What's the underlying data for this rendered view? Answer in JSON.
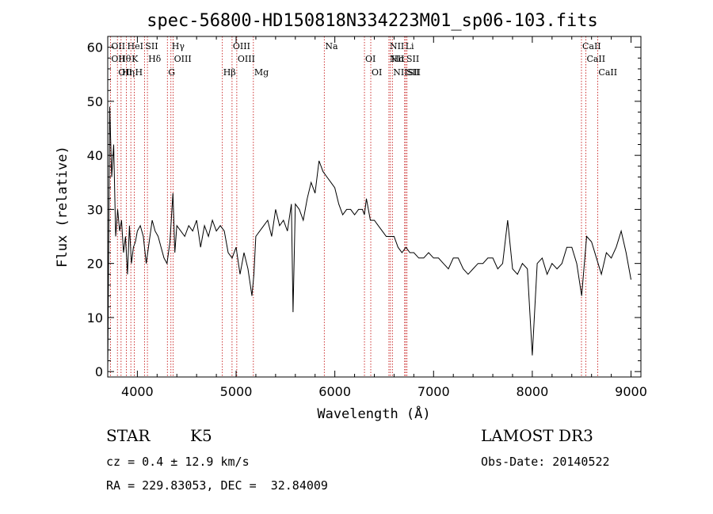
{
  "chart_data": {
    "type": "line",
    "title": "spec-56800-HD150818N334223M01_sp06-103.fits",
    "xlabel": "Wavelength (Å)",
    "ylabel": "Flux (relative)",
    "xlim": [
      3700,
      9100
    ],
    "ylim": [
      -1,
      62
    ],
    "xticks": [
      4000,
      5000,
      6000,
      7000,
      8000,
      9000
    ],
    "yticks": [
      0,
      10,
      20,
      30,
      40,
      50,
      60
    ],
    "grid": false,
    "series": [
      {
        "x": [
          3700,
          3720,
          3740,
          3760,
          3780,
          3800,
          3820,
          3840,
          3860,
          3880,
          3900,
          3920,
          3940,
          3960,
          3980,
          4000,
          4030,
          4060,
          4090,
          4120,
          4150,
          4180,
          4210,
          4240,
          4270,
          4300,
          4330,
          4360,
          4380,
          4400,
          4440,
          4480,
          4520,
          4560,
          4600,
          4640,
          4680,
          4720,
          4760,
          4800,
          4840,
          4880,
          4920,
          4960,
          5000,
          5040,
          5080,
          5120,
          5160,
          5180,
          5200,
          5240,
          5280,
          5320,
          5360,
          5400,
          5440,
          5480,
          5520,
          5560,
          5577,
          5600,
          5640,
          5680,
          5720,
          5760,
          5800,
          5840,
          5880,
          5920,
          5960,
          6000,
          6040,
          6080,
          6120,
          6160,
          6200,
          6240,
          6280,
          6300,
          6320,
          6360,
          6400,
          6440,
          6480,
          6520,
          6560,
          6600,
          6640,
          6680,
          6720,
          6760,
          6800,
          6850,
          6900,
          6950,
          7000,
          7050,
          7100,
          7150,
          7200,
          7250,
          7300,
          7350,
          7400,
          7450,
          7500,
          7550,
          7600,
          7650,
          7700,
          7750,
          7800,
          7850,
          7900,
          7950,
          8000,
          8050,
          8100,
          8150,
          8200,
          8250,
          8300,
          8350,
          8400,
          8450,
          8500,
          8550,
          8600,
          8650,
          8700,
          8750,
          8800,
          8850,
          8900,
          8950,
          9000
        ],
        "y": [
          0,
          49,
          36,
          42,
          25,
          30,
          26,
          28,
          22,
          25,
          18,
          27,
          20,
          23,
          24,
          26,
          27,
          25,
          20,
          24,
          28,
          26,
          25,
          23,
          21,
          20,
          24,
          33,
          22,
          27,
          26,
          25,
          27,
          26,
          28,
          23,
          27,
          25,
          28,
          26,
          27,
          26,
          22,
          21,
          23,
          18,
          22,
          19,
          14,
          18,
          25,
          26,
          27,
          28,
          25,
          30,
          27,
          28,
          26,
          31,
          11,
          31,
          30,
          28,
          32,
          35,
          33,
          39,
          37,
          36,
          35,
          34,
          31,
          29,
          30,
          30,
          29,
          30,
          30,
          29,
          32,
          28,
          28,
          27,
          26,
          25,
          25,
          25,
          23,
          22,
          23,
          22,
          22,
          21,
          21,
          22,
          21,
          21,
          20,
          19,
          21,
          21,
          19,
          18,
          19,
          20,
          20,
          21,
          21,
          19,
          20,
          28,
          19,
          18,
          20,
          19,
          3,
          20,
          21,
          18,
          20,
          19,
          20,
          23,
          23,
          20,
          14,
          25,
          24,
          21,
          18,
          22,
          21,
          23,
          26,
          22,
          17
        ]
      }
    ],
    "line_markers": [
      {
        "wave": 3727,
        "rows": [
          [
            "OII"
          ],
          [
            "OII"
          ]
        ]
      },
      {
        "wave": 3798,
        "rows": [
          [
            "Hθ"
          ],
          [
            "OII"
          ]
        ]
      },
      {
        "wave": 3835,
        "rows": [
          [
            "Hη"
          ]
        ]
      },
      {
        "wave": 3889,
        "rows": [
          [
            "HeI"
          ]
        ]
      },
      {
        "wave": 3934,
        "rows": [
          [
            "K"
          ]
        ]
      },
      {
        "wave": 3969,
        "rows": [
          [
            "H"
          ]
        ]
      },
      {
        "wave": 4072,
        "rows": [
          [
            "SII"
          ]
        ]
      },
      {
        "wave": 4102,
        "rows": [
          [
            "Hδ"
          ]
        ]
      },
      {
        "wave": 4304,
        "rows": [
          [
            "G"
          ]
        ]
      },
      {
        "wave": 4340,
        "rows": [
          [
            "Hγ"
          ]
        ]
      },
      {
        "wave": 4363,
        "rows": [
          [
            "OIII"
          ]
        ]
      },
      {
        "wave": 4861,
        "rows": [
          [
            "Hβ"
          ]
        ]
      },
      {
        "wave": 4959,
        "rows": [
          [
            "OIII"
          ]
        ]
      },
      {
        "wave": 5007,
        "rows": [
          [
            "OIII"
          ]
        ]
      },
      {
        "wave": 5175,
        "rows": [
          [
            "Mg"
          ]
        ]
      },
      {
        "wave": 5893,
        "rows": [
          [
            "Na"
          ]
        ]
      },
      {
        "wave": 6300,
        "rows": [
          [
            "OI"
          ]
        ]
      },
      {
        "wave": 6364,
        "rows": [
          [
            "OI"
          ]
        ]
      },
      {
        "wave": 6548,
        "rows": [
          [
            "NII"
          ],
          [
            "NII"
          ]
        ]
      },
      {
        "wave": 6563,
        "rows": [
          [
            "Hα"
          ]
        ]
      },
      {
        "wave": 6583,
        "rows": [
          [
            "NII"
          ]
        ]
      },
      {
        "wave": 6707,
        "rows": [
          [
            "Li"
          ]
        ]
      },
      {
        "wave": 6717,
        "rows": [
          [
            "SII"
          ],
          [
            "SII"
          ]
        ]
      },
      {
        "wave": 6731,
        "rows": [
          [
            "SII"
          ]
        ]
      },
      {
        "wave": 8498,
        "rows": [
          [
            "CaII"
          ]
        ]
      },
      {
        "wave": 8542,
        "rows": [
          [
            "CaII"
          ]
        ]
      },
      {
        "wave": 8662,
        "rows": [
          [
            "CaII"
          ]
        ]
      }
    ]
  },
  "info": {
    "class_label": "STAR",
    "subclass": "K5",
    "survey": "LAMOST DR3",
    "cz": "cz = 0.4 ± 12.9 km/s",
    "obs_date": "Obs-Date: 20140522",
    "coords": "RA = 229.83053, DEC =  32.84009"
  },
  "colors": {
    "spectrum": "#000000",
    "marker_line": "#c00000",
    "text": "#000000"
  }
}
